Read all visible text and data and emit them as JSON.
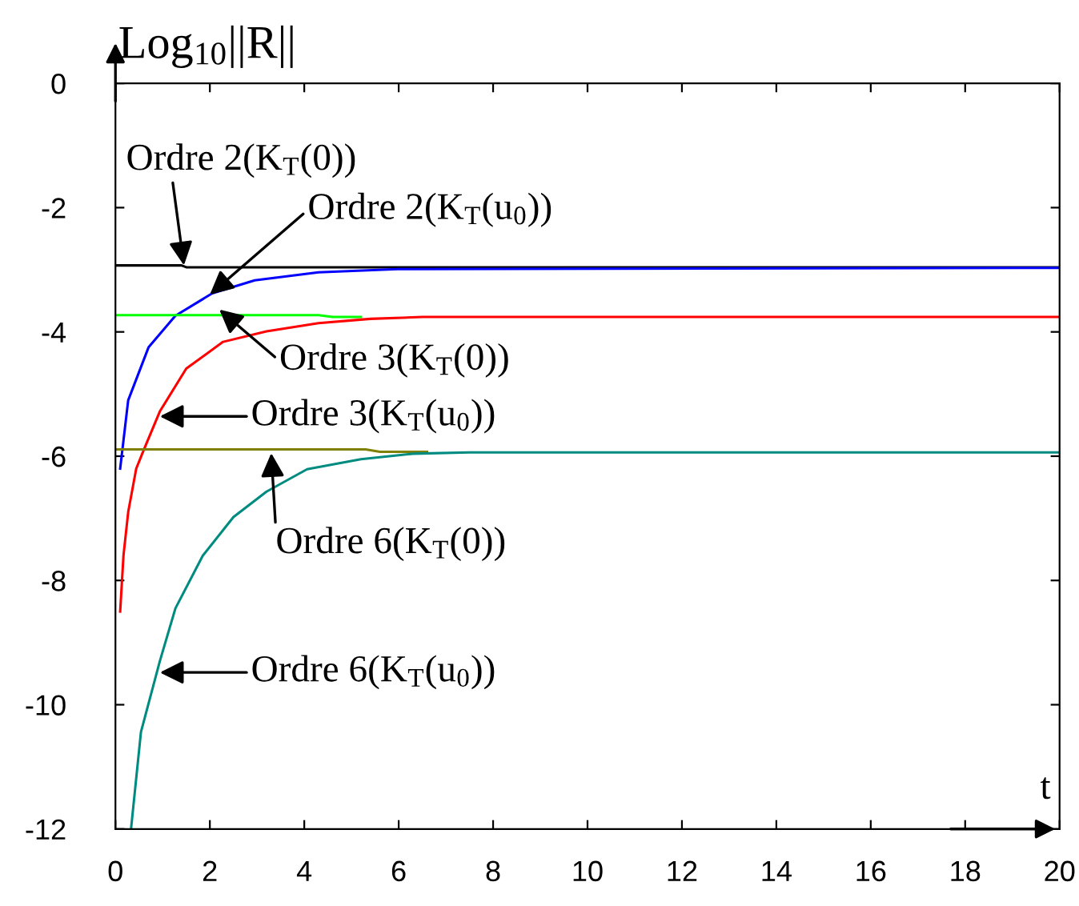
{
  "chart_data": {
    "type": "line",
    "xlabel": "t",
    "ylabel": "Log$_{10}$||R||",
    "xlim": [
      0,
      20
    ],
    "ylim": [
      -12,
      0
    ],
    "xticks": [
      0,
      2,
      4,
      6,
      8,
      10,
      12,
      14,
      16,
      18,
      20
    ],
    "yticks": [
      0,
      -2,
      -4,
      -6,
      -8,
      -10,
      -12
    ],
    "grid": false,
    "legend": false,
    "series": [
      {
        "color": "#000000",
        "x": [
          0,
          1.4,
          1.5,
          20
        ],
        "values": [
          -2.93,
          -2.93,
          -2.96,
          -2.96
        ]
      },
      {
        "color": "#0000ff",
        "x": [
          0.1,
          0.27,
          0.7,
          1.27,
          2.05,
          2.95,
          4.3,
          5.97,
          20
        ],
        "values": [
          -6.2,
          -5.1,
          -4.25,
          -3.74,
          -3.38,
          -3.17,
          -3.04,
          -2.99,
          -2.97
        ]
      },
      {
        "color": "#00ff00",
        "x": [
          0,
          4.3,
          4.6,
          5.2
        ],
        "values": [
          -3.73,
          -3.73,
          -3.76,
          -3.76
        ]
      },
      {
        "color": "#ff0000",
        "x": [
          0.1,
          0.17,
          0.27,
          0.44,
          0.6,
          0.94,
          1.5,
          2.28,
          3.2,
          4.3,
          5.4,
          6.5,
          20
        ],
        "values": [
          -8.5,
          -7.6,
          -6.9,
          -6.2,
          -5.9,
          -5.28,
          -4.59,
          -4.16,
          -3.99,
          -3.86,
          -3.79,
          -3.76,
          -3.76
        ]
      },
      {
        "color": "#808000",
        "x": [
          0,
          5.3,
          5.6,
          6.6
        ],
        "values": [
          -5.89,
          -5.89,
          -5.93,
          -5.93
        ]
      },
      {
        "color": "#008b80",
        "x": [
          0.33,
          0.54,
          0.94,
          1.27,
          1.85,
          2.5,
          3.2,
          4.06,
          5.2,
          6.3,
          7.5,
          20
        ],
        "values": [
          -12,
          -10.44,
          -9.3,
          -8.45,
          -7.6,
          -6.98,
          -6.57,
          -6.21,
          -6.05,
          -5.96,
          -5.94,
          -5.94
        ]
      }
    ],
    "annotations": [
      {
        "text": "Ordre 2(K$_{T}$(0))",
        "x": 1.45,
        "y": -2.93
      },
      {
        "text": "Ordre 2(K$_{T}$(u$_{0}$))",
        "x": 2.0,
        "y": -3.4
      },
      {
        "text": "Ordre 3(K$_{T}$(0))",
        "x": 2.2,
        "y": -3.64
      },
      {
        "text": "Ordre 3(K$_{T}$(u$_{0}$))",
        "x": 0.94,
        "y": -5.36
      },
      {
        "text": "Ordre 6(K$_{T}$(0))",
        "x": 3.3,
        "y": -5.95
      },
      {
        "text": "Ordre 6(K$_{T}$(u$_{0}$))",
        "x": 0.94,
        "y": -9.48
      }
    ]
  }
}
